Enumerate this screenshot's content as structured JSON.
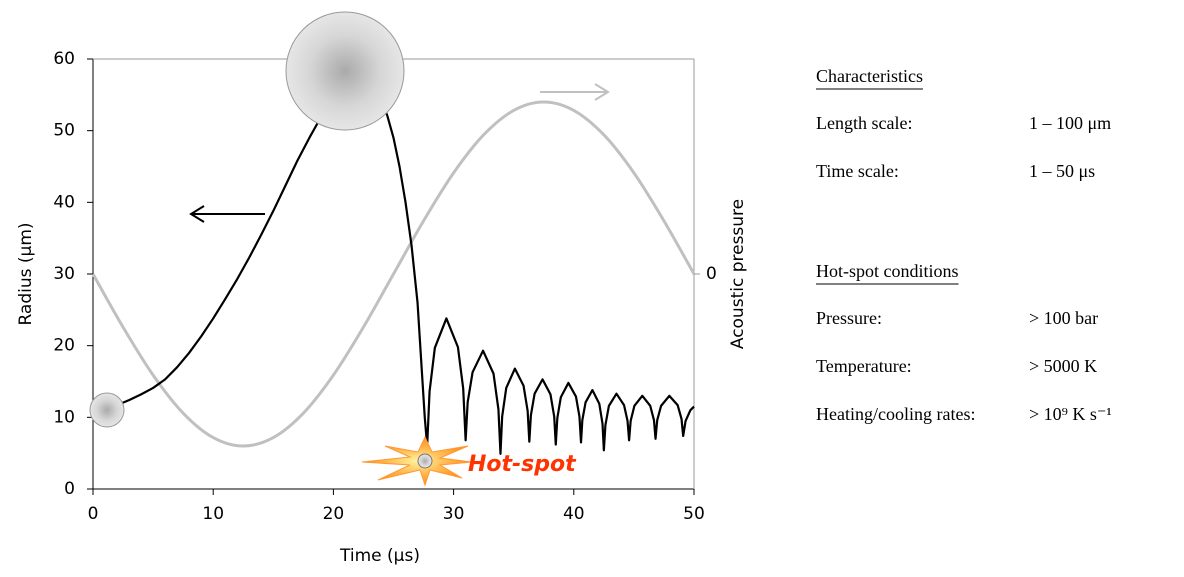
{
  "chart_data": {
    "type": "line",
    "xlabel": "Time (μs)",
    "ylabel": "Radius (μm)",
    "y2label": "Acoustic pressure",
    "xlim": [
      0,
      50
    ],
    "xticks": [
      0,
      10,
      20,
      30,
      40,
      50
    ],
    "ylim": [
      0,
      60
    ],
    "yticks": [
      0,
      10,
      20,
      30,
      40,
      50,
      60
    ],
    "y2lim": [
      -1.25,
      1.25
    ],
    "y2ticks": [
      0
    ],
    "annotations": [
      "Hot-spot"
    ],
    "series": [
      {
        "color": "#c0c0c0",
        "axis": "y2",
        "x": [
          0,
          2.5,
          5,
          7.5,
          10,
          12.5,
          15,
          17.5,
          20,
          22.5,
          25,
          27.5,
          30,
          32.5,
          35,
          37.5,
          40,
          42.5,
          45,
          47.5,
          50
        ],
        "values": [
          0,
          -0.309,
          -0.588,
          -0.809,
          -0.951,
          -1,
          -0.951,
          -0.809,
          -0.588,
          -0.309,
          0,
          0.309,
          0.588,
          0.809,
          0.951,
          1,
          0.951,
          0.809,
          0.588,
          0.309,
          0
        ]
      },
      {
        "color": "#000000",
        "x": [
          1,
          2,
          3,
          4,
          5,
          6,
          7,
          8,
          9,
          10,
          11,
          12,
          13,
          14,
          15,
          16,
          17,
          18,
          19,
          20,
          21,
          22,
          23,
          24,
          24.5,
          25,
          25.5,
          26,
          26.5,
          27,
          27.3,
          27.6,
          27.8,
          28.0,
          28.44,
          29.4,
          30.36,
          30.8,
          31.0,
          31.17,
          31.58,
          32.45,
          33.32,
          33.73,
          33.9,
          34.04,
          34.38,
          35.1,
          35.82,
          36.16,
          36.3,
          36.43,
          36.74,
          37.4,
          38.06,
          38.37,
          38.5,
          38.63,
          38.92,
          39.55,
          40.18,
          40.47,
          40.6,
          40.71,
          40.98,
          41.55,
          42.12,
          42.39,
          42.5,
          42.63,
          42.92,
          43.55,
          44.18,
          44.47,
          44.6,
          44.73,
          45.04,
          45.7,
          46.36,
          46.67,
          46.8,
          46.94,
          47.26,
          47.95,
          48.64,
          48.96,
          49.1,
          49.3,
          49.7,
          50
        ],
        "values": [
          11,
          11.7,
          12.4,
          13.2,
          14.1,
          15.3,
          17,
          19,
          21.3,
          23.8,
          26.5,
          29.3,
          32.3,
          35.5,
          38.8,
          42.3,
          45.8,
          49,
          52,
          54.5,
          56.5,
          57.5,
          57.5,
          54.5,
          52,
          49,
          45,
          40,
          34,
          26,
          18,
          10,
          6,
          13.6,
          19.7,
          23.8,
          19.8,
          14.0,
          6.8,
          12.1,
          16.3,
          19.3,
          16.1,
          11.1,
          4.9,
          10.1,
          14.1,
          16.8,
          14.4,
          10.9,
          6.6,
          10.3,
          13.3,
          15.3,
          13.2,
          10.1,
          6.2,
          9.9,
          12.8,
          14.8,
          12.9,
          10.1,
          6.5,
          9.6,
          12.1,
          13.8,
          11.9,
          9.1,
          5.4,
          8.9,
          11.6,
          13.3,
          11.7,
          9.5,
          6.8,
          9.5,
          11.6,
          13,
          11.6,
          9.6,
          7,
          9.6,
          11.6,
          13,
          11.7,
          9.8,
          7.4,
          9.5,
          11,
          11.5
        ]
      }
    ]
  },
  "panel": {
    "sections": [
      {
        "heading": "Characteristics",
        "rows": [
          [
            "Length scale:",
            "1 – 100 μm"
          ],
          [
            "Time scale:",
            "1 – 50 μs"
          ]
        ]
      },
      {
        "heading": "Hot-spot conditions",
        "rows": [
          [
            "Pressure:",
            "> 100 bar"
          ],
          [
            "Temperature:",
            "> 5000 K"
          ],
          [
            "Heating/cooling rates:",
            "> 10⁹ K s⁻¹"
          ]
        ]
      }
    ]
  }
}
